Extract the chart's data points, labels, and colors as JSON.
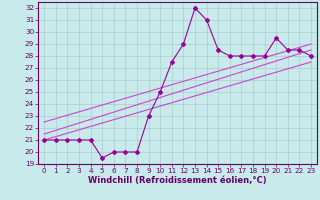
{
  "x_data": [
    0,
    1,
    2,
    3,
    4,
    5,
    6,
    7,
    8,
    9,
    10,
    11,
    12,
    13,
    14,
    15,
    16,
    17,
    18,
    19,
    20,
    21,
    22,
    23
  ],
  "y_main": [
    21,
    21,
    21,
    21,
    21,
    19.5,
    20,
    20,
    20,
    23,
    25,
    27.5,
    29,
    32,
    31,
    28.5,
    28,
    28,
    28,
    28,
    29.5,
    28.5,
    28.5,
    28
  ],
  "line1_x": [
    0,
    23
  ],
  "line1_y": [
    21.0,
    27.5
  ],
  "line2_x": [
    0,
    23
  ],
  "line2_y": [
    21.5,
    28.5
  ],
  "line3_x": [
    0,
    23
  ],
  "line3_y": [
    22.5,
    29.0
  ],
  "color_main": "#990099",
  "color_lines": "#cc44cc",
  "bg_color": "#c8eaea",
  "grid_color": "#aacccc",
  "axis_color": "#660066",
  "text_color": "#660066",
  "xlabel": "Windchill (Refroidissement éolien,°C)",
  "xlim": [
    -0.5,
    23.5
  ],
  "ylim": [
    19,
    32.5
  ],
  "yticks": [
    19,
    20,
    21,
    22,
    23,
    24,
    25,
    26,
    27,
    28,
    29,
    30,
    31,
    32
  ],
  "xticks": [
    0,
    1,
    2,
    3,
    4,
    5,
    6,
    7,
    8,
    9,
    10,
    11,
    12,
    13,
    14,
    15,
    16,
    17,
    18,
    19,
    20,
    21,
    22,
    23
  ],
  "label_fontsize": 6.0,
  "tick_fontsize": 5.2,
  "marker": "D",
  "markersize": 2.0,
  "linewidth": 0.8
}
